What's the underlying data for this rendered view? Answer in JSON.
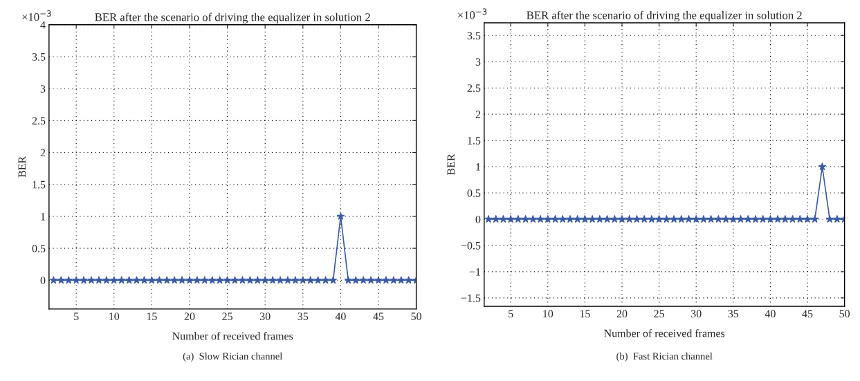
{
  "chart_data": [
    {
      "type": "line",
      "title": "BER after the scenario of driving the equalizer in solution 2",
      "xlabel": "Number of received frames",
      "ylabel": "BER",
      "x": [
        2,
        3,
        4,
        5,
        6,
        7,
        8,
        9,
        10,
        11,
        12,
        13,
        14,
        15,
        16,
        17,
        18,
        19,
        20,
        21,
        22,
        23,
        24,
        25,
        26,
        27,
        28,
        29,
        30,
        31,
        32,
        33,
        34,
        35,
        36,
        37,
        38,
        39,
        40,
        41,
        42,
        43,
        44,
        45,
        46,
        47,
        48,
        49,
        50
      ],
      "series": [
        {
          "color": "#3b5ba5",
          "values": [
            0,
            0,
            0,
            0,
            0,
            0,
            0,
            0,
            0,
            0,
            0,
            0,
            0,
            0,
            0,
            0,
            0,
            0,
            0,
            0,
            0,
            0,
            0,
            0,
            0,
            0,
            0,
            0,
            0,
            0,
            0,
            0,
            0,
            0,
            0,
            0,
            0,
            0,
            1,
            0,
            0,
            0,
            0,
            0,
            0,
            0,
            0,
            0,
            0
          ]
        }
      ],
      "xlim": [
        1.4,
        50
      ],
      "xticks": [
        5,
        10,
        15,
        20,
        25,
        30,
        35,
        40,
        45,
        50
      ],
      "ylim": [
        -0.45,
        4
      ],
      "yticks": [
        0,
        0.5,
        1,
        1.5,
        2,
        2.5,
        3,
        3.5,
        4
      ],
      "grid": true,
      "marker": "star",
      "line_style": "solid",
      "legend": false,
      "annotations": [
        "×10$^{−3}$",
        "(a)  Slow Rician channel"
      ]
    },
    {
      "type": "line",
      "title": "BER after the scenario of driving the equalizer in solution 2",
      "xlabel": "Number of received frames",
      "ylabel": "BER",
      "x": [
        2,
        3,
        4,
        5,
        6,
        7,
        8,
        9,
        10,
        11,
        12,
        13,
        14,
        15,
        16,
        17,
        18,
        19,
        20,
        21,
        22,
        23,
        24,
        25,
        26,
        27,
        28,
        29,
        30,
        31,
        32,
        33,
        34,
        35,
        36,
        37,
        38,
        39,
        40,
        41,
        42,
        43,
        44,
        45,
        46,
        47,
        48,
        49,
        50
      ],
      "series": [
        {
          "color": "#3b5ba5",
          "values": [
            0,
            0,
            0,
            0,
            0,
            0,
            0,
            0,
            0,
            0,
            0,
            0,
            0,
            0,
            0,
            0,
            0,
            0,
            0,
            0,
            0,
            0,
            0,
            0,
            0,
            0,
            0,
            0,
            0,
            0,
            0,
            0,
            0,
            0,
            0,
            0,
            0,
            0,
            0,
            0,
            0,
            0,
            0,
            0,
            0,
            1,
            0,
            0,
            0
          ]
        }
      ],
      "xlim": [
        1.42,
        50
      ],
      "xticks": [
        5,
        10,
        15,
        20,
        25,
        30,
        35,
        40,
        45,
        50
      ],
      "ylim": [
        -1.66,
        3.74
      ],
      "yticks": [
        {
          "value": -1.5,
          "label": "−1.5"
        },
        {
          "value": -1,
          "label": "−1"
        },
        {
          "value": -0.5,
          "label": "−0.5"
        },
        0,
        0.5,
        1,
        1.5,
        2,
        2.5,
        3,
        3.5
      ],
      "grid": true,
      "marker": "star",
      "line_style": "solid",
      "legend": false,
      "annotations": [
        "×10$^{−3}$",
        "(b)  Fast Rician channel"
      ]
    }
  ]
}
